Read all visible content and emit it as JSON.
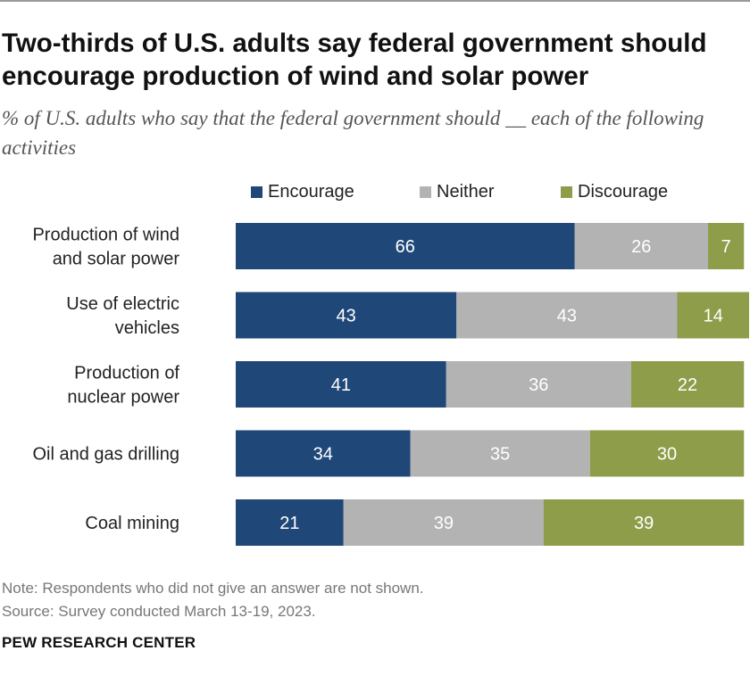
{
  "title": "Two-thirds of U.S. adults say federal government should encourage production of wind and solar power",
  "subtitle": "% of U.S. adults who say that the federal government should __ each of the following activities",
  "legend": [
    {
      "label": "Encourage",
      "color": "#1f4778"
    },
    {
      "label": "Neither",
      "color": "#b3b3b3"
    },
    {
      "label": "Discourage",
      "color": "#8e9d4a"
    }
  ],
  "chart_data": {
    "type": "bar",
    "orientation": "horizontal",
    "stacked": true,
    "categories": [
      [
        "Production of wind",
        "and solar power"
      ],
      [
        "Use of electric",
        "vehicles"
      ],
      [
        "Production of",
        "nuclear power"
      ],
      [
        "Oil and gas drilling"
      ],
      [
        "Coal mining"
      ]
    ],
    "series": [
      {
        "name": "Encourage",
        "color": "#1f4778",
        "values": [
          66,
          43,
          41,
          34,
          21
        ]
      },
      {
        "name": "Neither",
        "color": "#b3b3b3",
        "values": [
          26,
          43,
          36,
          35,
          39
        ]
      },
      {
        "name": "Discourage",
        "color": "#8e9d4a",
        "values": [
          7,
          14,
          22,
          30,
          39
        ]
      }
    ],
    "xlim": [
      0,
      100
    ],
    "grid": false,
    "legend_position": "top"
  },
  "note": "Note: Respondents who did not give an answer are not shown.",
  "source": "Source: Survey conducted March 13-19, 2023.",
  "brand": "PEW RESEARCH CENTER"
}
